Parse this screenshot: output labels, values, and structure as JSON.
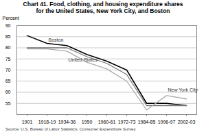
{
  "chart_data": {
    "type": "line",
    "title": "Chart 41. Food, clothing, and housing expenditure shares",
    "subtitle": "for the United States, New York City, and Boston",
    "caption": "Source: U.S. Bureau of Labor Statistics, Consumer Expenditure Survey",
    "ylabel": "Percent",
    "categories": [
      "1901",
      "1918-19",
      "1934-36",
      "1950",
      "1960-61",
      "1972-73",
      "1984-85",
      "1996-97",
      "2002-03"
    ],
    "ylim": [
      50,
      90
    ],
    "yticks": [
      55,
      60,
      65,
      70,
      75,
      80,
      85,
      90
    ],
    "grid": true,
    "series": [
      {
        "name": "Boston",
        "color": "#000000",
        "values": [
          85.5,
          82.0,
          81.0,
          77.0,
          74.0,
          70.0,
          55.0,
          55.0,
          54.0
        ]
      },
      {
        "name": "United States",
        "color": "#777777",
        "values": [
          80.0,
          80.0,
          80.0,
          76.0,
          73.0,
          68.0,
          54.0,
          54.0,
          54.0
        ]
      },
      {
        "name": "New York City",
        "color": "#aaaaaa",
        "values": [
          79.5,
          79.5,
          78.5,
          73.5,
          70.5,
          65.0,
          52.0,
          58.5,
          57.0
        ]
      }
    ],
    "annotations": [
      {
        "text": "Boston",
        "x": "1918-19",
        "y": 83.5
      },
      {
        "text": "United States",
        "x": "1934-36",
        "y": 74.5
      },
      {
        "text": "New York City",
        "x": "1996-97",
        "y": 61.0
      }
    ]
  }
}
